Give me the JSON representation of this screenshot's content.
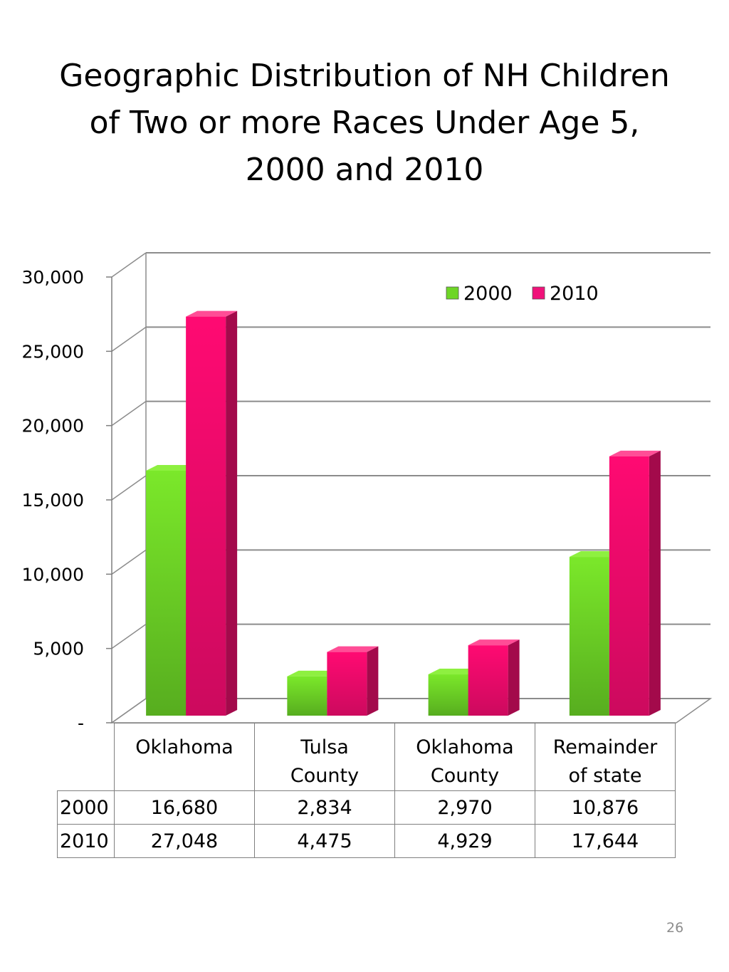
{
  "title_lines": [
    "Geographic Distribution of NH Children",
    "of Two or more Races Under Age 5,",
    "2000 and 2010"
  ],
  "page_number": "26",
  "colors": {
    "s2000": "#66cc22",
    "s2010": "#ee1177"
  },
  "chart_data": {
    "type": "bar",
    "title": "Geographic Distribution of NH Children of Two or more Races Under Age 5, 2000 and 2010",
    "categories": [
      [
        "Oklahoma"
      ],
      [
        "Tulsa",
        "County"
      ],
      [
        "Oklahoma",
        "County"
      ],
      [
        "Remainder",
        "of state"
      ]
    ],
    "series": [
      {
        "name": "2000",
        "values": [
          16680,
          2834,
          2970,
          10876
        ],
        "labels": [
          "16,680",
          "2,834",
          "2,970",
          "10,876"
        ]
      },
      {
        "name": "2010",
        "values": [
          27048,
          4475,
          4929,
          17644
        ],
        "labels": [
          "27,048",
          "4,475",
          "4,929",
          "17,644"
        ]
      }
    ],
    "ylim": [
      0,
      30000
    ],
    "yticks": [
      0,
      5000,
      10000,
      15000,
      20000,
      25000,
      30000
    ],
    "ytick_labels": [
      "-",
      "5,000",
      "10,000",
      "15,000",
      "20,000",
      "25,000",
      "30,000"
    ],
    "grid": true,
    "legend": "top-right",
    "data_table": true
  }
}
